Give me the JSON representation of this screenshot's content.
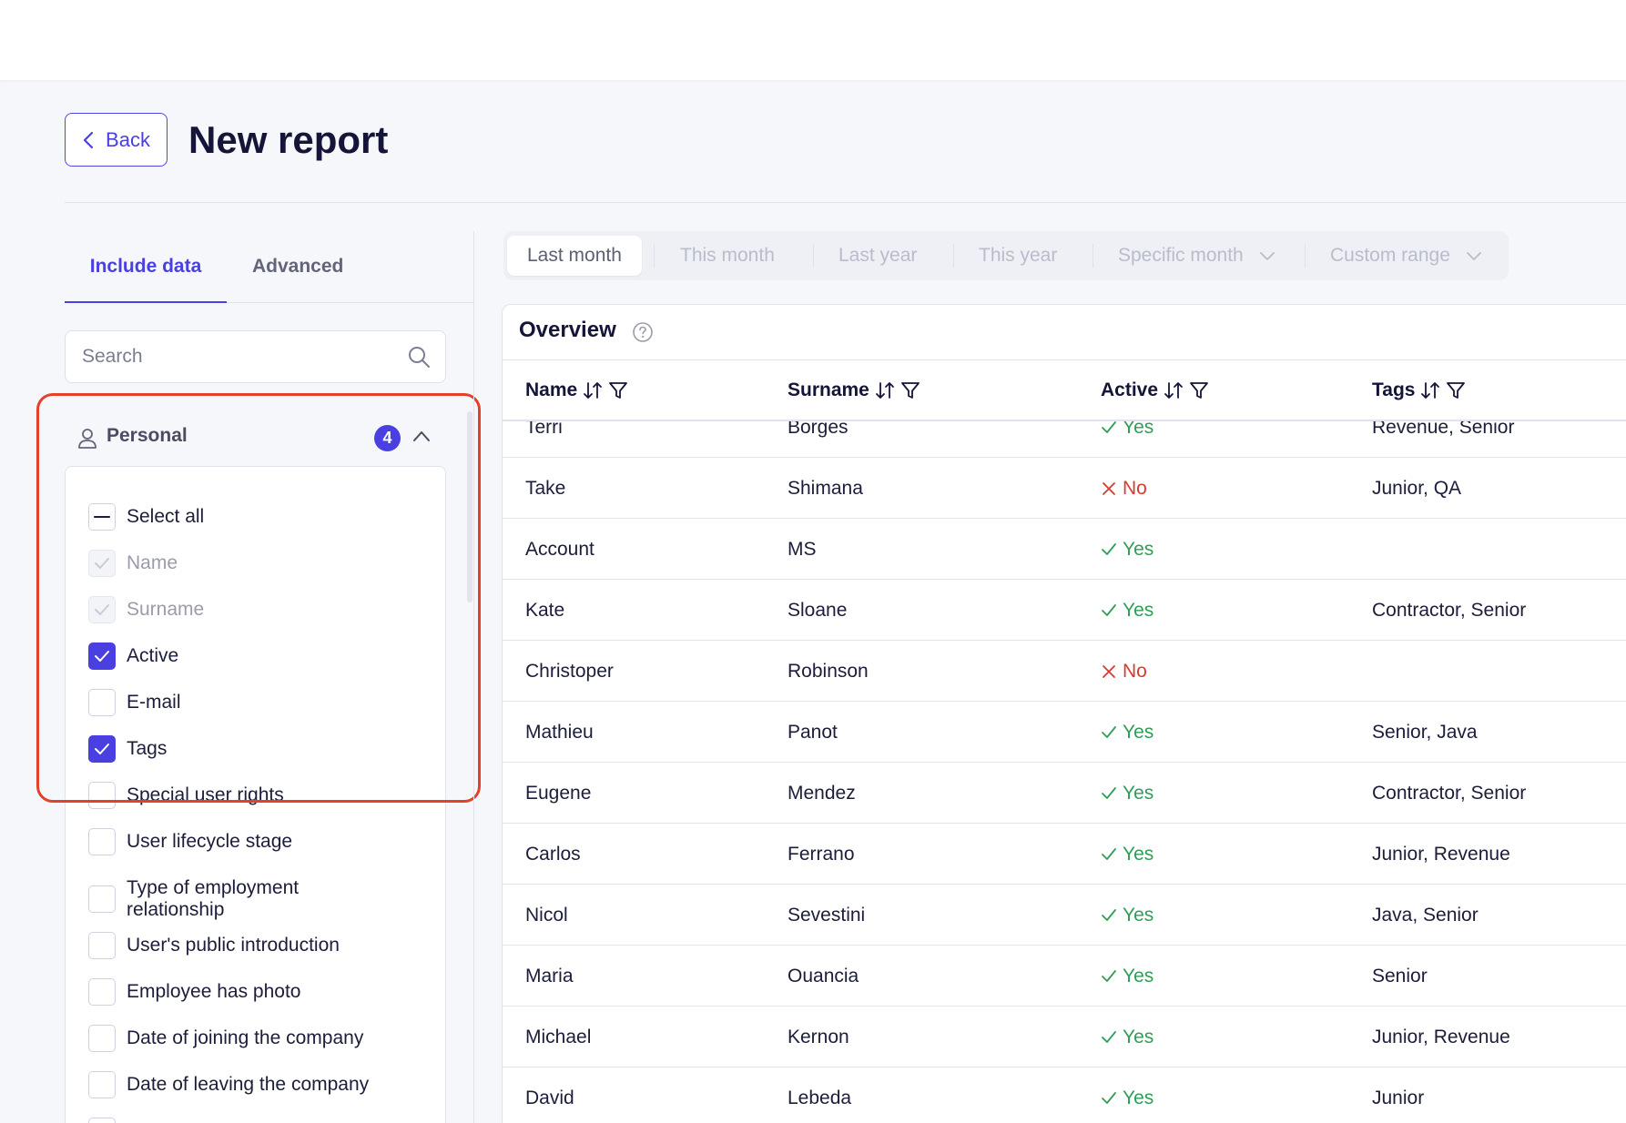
{
  "header": {
    "back_label": "Back",
    "title": "New report"
  },
  "sidebar": {
    "tabs": [
      {
        "label": "Include data",
        "active": true
      },
      {
        "label": "Advanced",
        "active": false
      }
    ],
    "search_placeholder": "Search",
    "group": {
      "label": "Personal",
      "count": "4",
      "expanded": true
    },
    "options": [
      {
        "label": "Select all",
        "state": "indeterminate"
      },
      {
        "label": "Name",
        "state": "checked-disabled"
      },
      {
        "label": "Surname",
        "state": "checked-disabled"
      },
      {
        "label": "Active",
        "state": "checked"
      },
      {
        "label": "E-mail",
        "state": "unchecked"
      },
      {
        "label": "Tags",
        "state": "checked"
      },
      {
        "label": "Special user rights",
        "state": "unchecked"
      },
      {
        "label": "User lifecycle stage",
        "state": "unchecked"
      },
      {
        "label": "Type of employment relationship",
        "state": "unchecked"
      },
      {
        "label": "User's public introduction",
        "state": "unchecked"
      },
      {
        "label": "Employee has photo",
        "state": "unchecked"
      },
      {
        "label": "Date of joining the company",
        "state": "unchecked"
      },
      {
        "label": "Date of leaving the company",
        "state": "unchecked"
      }
    ]
  },
  "periods": [
    {
      "label": "Last month",
      "active": true,
      "dropdown": false
    },
    {
      "label": "This month",
      "active": false,
      "dropdown": false
    },
    {
      "label": "Last year",
      "active": false,
      "dropdown": false
    },
    {
      "label": "This year",
      "active": false,
      "dropdown": false
    },
    {
      "label": "Specific month",
      "active": false,
      "dropdown": true
    },
    {
      "label": "Custom range",
      "active": false,
      "dropdown": true
    }
  ],
  "overview": {
    "title": "Overview",
    "columns": [
      "Name",
      "Surname",
      "Active",
      "Tags"
    ],
    "rows": [
      [
        "Terri",
        "Borges",
        "Yes",
        "Revenue, Senior"
      ],
      [
        "Take",
        "Shimana",
        "No",
        "Junior, QA"
      ],
      [
        "Account",
        "MS",
        "Yes",
        ""
      ],
      [
        "Kate",
        "Sloane",
        "Yes",
        "Contractor, Senior"
      ],
      [
        "Christoper",
        "Robinson",
        "No",
        ""
      ],
      [
        "Mathieu",
        "Panot",
        "Yes",
        "Senior, Java"
      ],
      [
        "Eugene",
        "Mendez",
        "Yes",
        "Contractor, Senior"
      ],
      [
        "Carlos",
        "Ferrano",
        "Yes",
        "Junior, Revenue"
      ],
      [
        "Nicol",
        "Sevestini",
        "Yes",
        "Java, Senior"
      ],
      [
        "Maria",
        "Ouancia",
        "Yes",
        "Senior"
      ],
      [
        "Michael",
        "Kernon",
        "Yes",
        "Junior, Revenue"
      ],
      [
        "David",
        "Lebeda",
        "Yes",
        "Junior"
      ]
    ]
  },
  "colors": {
    "accent": "#4a3fe0",
    "highlight": "#e5412a",
    "yes": "#2f9e57",
    "no": "#d83a2e"
  }
}
